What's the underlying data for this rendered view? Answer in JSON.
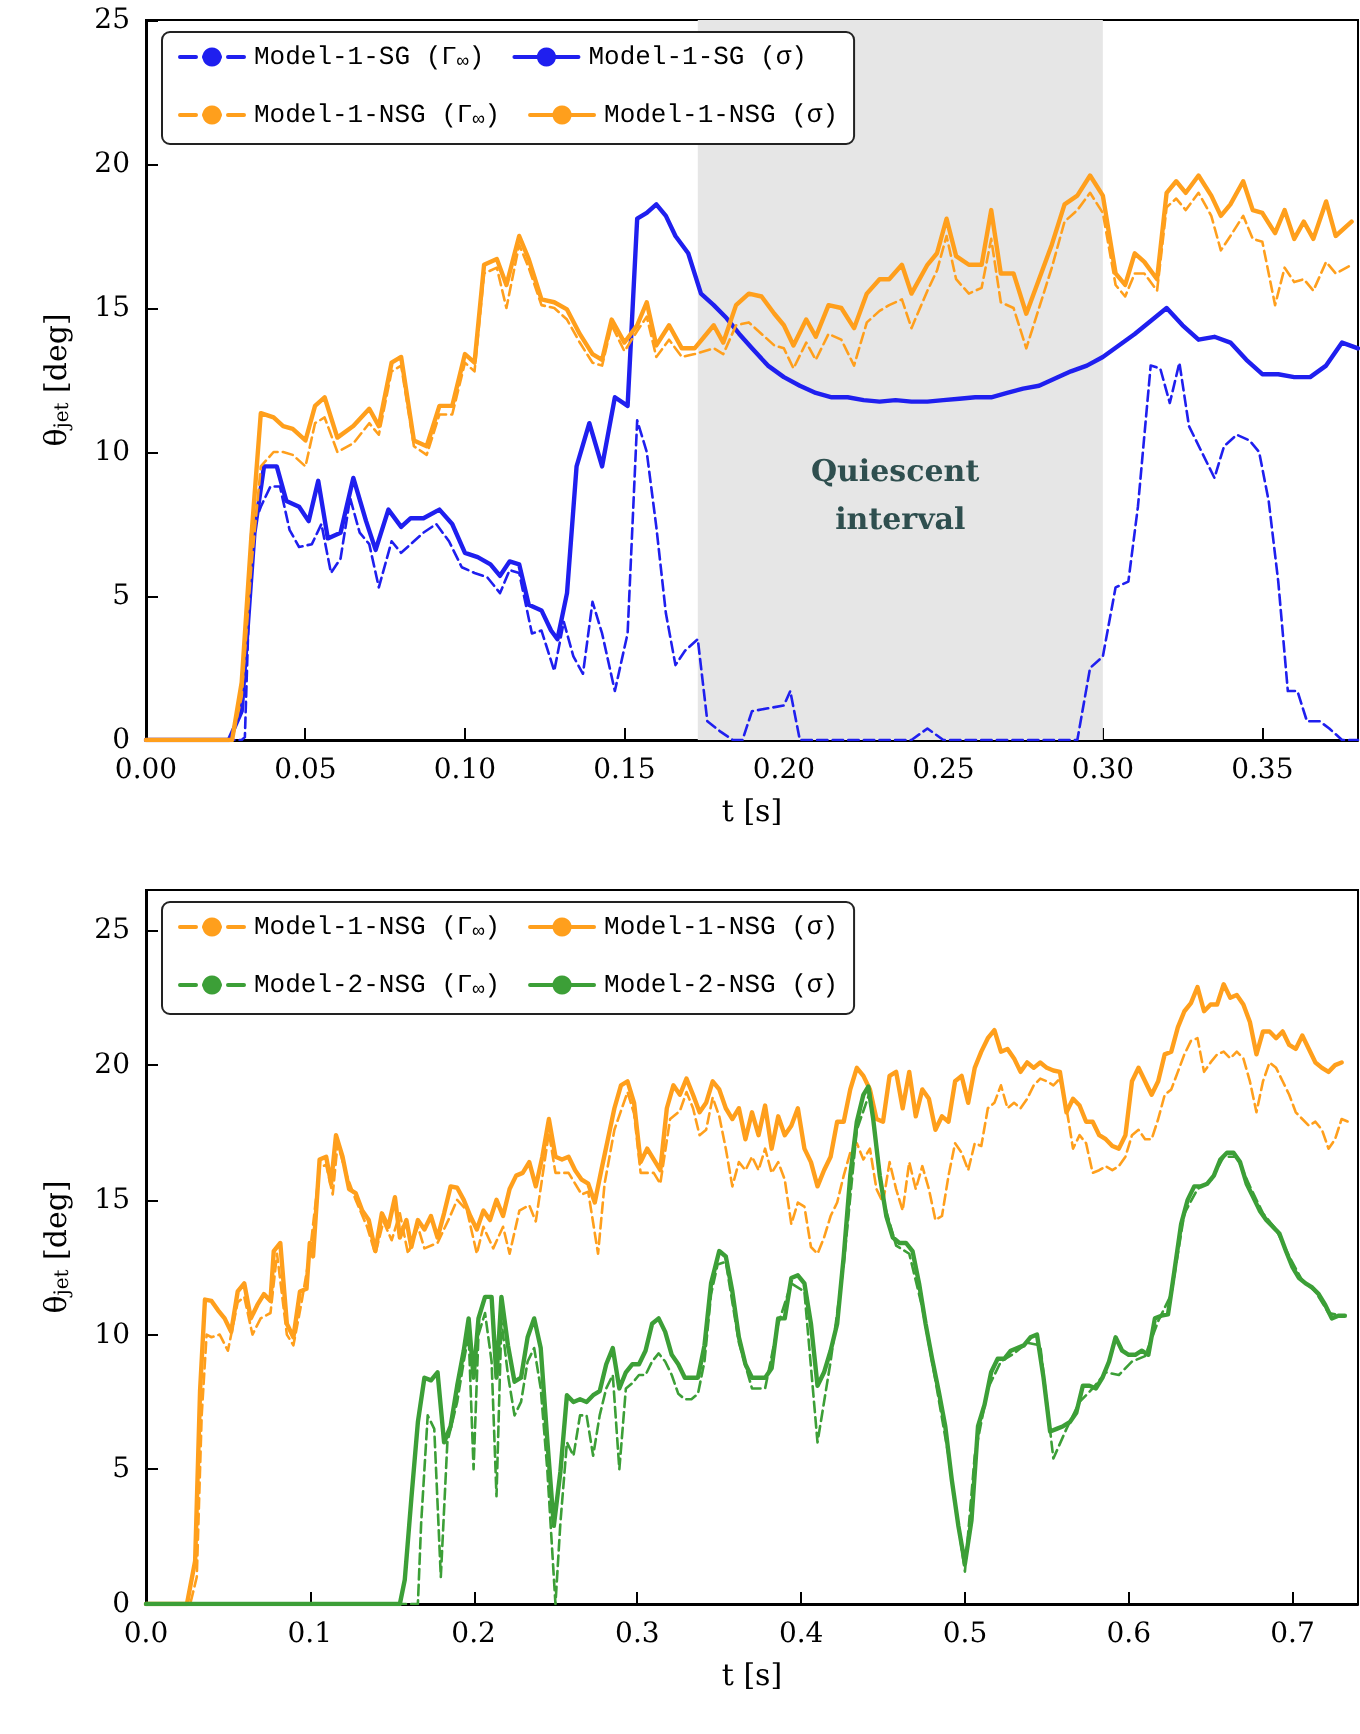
{
  "chart_data": [
    {
      "type": "line",
      "xlabel": "t [s]",
      "ylabel": "θ$_{jet}$ [deg]",
      "xlim": [
        0,
        0.38
      ],
      "ylim": [
        0,
        25
      ],
      "xticks": [
        {
          "value": 0,
          "label": "0.00"
        },
        0.05,
        {
          "value": 0.1,
          "label": "0.10"
        },
        0.15,
        {
          "value": 0.2,
          "label": "0.20"
        },
        0.25,
        {
          "value": 0.3,
          "label": "0.30"
        },
        0.35
      ],
      "yticks": [
        0,
        5,
        10,
        15,
        20,
        25
      ],
      "grid": false,
      "legend": "top left",
      "marker": "none",
      "bands": [
        {
          "axis": "x",
          "from": 0.173,
          "to": 0.3,
          "label": "Quiescent interval",
          "color": "#e6e6e6"
        }
      ],
      "series": [
        {
          "name": "Model-1-SG (Γ$_{∞}$)",
          "color": "#1f1fef",
          "line_style": "dashed",
          "x": [
            0,
            0.03,
            0.031,
            0.033,
            0.036,
            0.039,
            0.042,
            0.045,
            0.048,
            0.052,
            0.055,
            0.058,
            0.061,
            0.064,
            0.067,
            0.07,
            0.073,
            0.077,
            0.08,
            0.084,
            0.087,
            0.091,
            0.095,
            0.099,
            0.103,
            0.107,
            0.111,
            0.114,
            0.117,
            0.121,
            0.124,
            0.128,
            0.131,
            0.134,
            0.137,
            0.14,
            0.143,
            0.147,
            0.151,
            0.154,
            0.157,
            0.16,
            0.163,
            0.166,
            0.169,
            0.173,
            0.176,
            0.18,
            0.184,
            0.187,
            0.19,
            0.195,
            0.2,
            0.202,
            0.205,
            0.24,
            0.245,
            0.25,
            0.292,
            0.296,
            0.3,
            0.304,
            0.308,
            0.311,
            0.315,
            0.318,
            0.321,
            0.324,
            0.327,
            0.331,
            0.335,
            0.338,
            0.342,
            0.346,
            0.349,
            0.352,
            0.355,
            0.358,
            0.361,
            0.364,
            0.368,
            0.371,
            0.375,
            0.38
          ],
          "values": [
            0,
            0,
            0.1,
            7.2,
            8.1,
            8.8,
            8.8,
            7.3,
            6.7,
            6.8,
            7.5,
            5.8,
            6.3,
            8.4,
            7.2,
            6.8,
            5.3,
            6.9,
            6.5,
            6.9,
            7.2,
            7.5,
            6.9,
            6.0,
            5.8,
            5.65,
            5.1,
            5.9,
            5.8,
            3.7,
            3.8,
            2.4,
            4.1,
            2.9,
            2.3,
            4.8,
            3.7,
            1.7,
            3.7,
            11.1,
            10.0,
            7.4,
            4.4,
            2.6,
            3.1,
            3.5,
            0.65,
            0.3,
            0,
            0,
            1.0,
            1.1,
            1.2,
            1.7,
            0,
            0,
            0.4,
            0,
            0,
            2.5,
            2.9,
            5.3,
            5.5,
            8.1,
            13.0,
            12.9,
            11.7,
            13.1,
            10.9,
            10.0,
            9.1,
            10.2,
            10.6,
            10.4,
            10.0,
            8.3,
            5.5,
            1.7,
            1.7,
            0.65,
            0.65,
            0.4,
            0,
            0
          ]
        },
        {
          "name": "Model-1-SG (σ)",
          "color": "#1f1fef",
          "line_style": "solid",
          "x": [
            0,
            0.026,
            0.03,
            0.034,
            0.037,
            0.041,
            0.044,
            0.048,
            0.051,
            0.054,
            0.057,
            0.061,
            0.065,
            0.069,
            0.072,
            0.076,
            0.08,
            0.083,
            0.087,
            0.092,
            0.096,
            0.1,
            0.104,
            0.108,
            0.111,
            0.114,
            0.117,
            0.12,
            0.124,
            0.127,
            0.129,
            0.132,
            0.135,
            0.139,
            0.143,
            0.147,
            0.151,
            0.154,
            0.157,
            0.16,
            0.163,
            0.166,
            0.17,
            0.174,
            0.178,
            0.182,
            0.186,
            0.19,
            0.195,
            0.2,
            0.205,
            0.21,
            0.215,
            0.22,
            0.225,
            0.23,
            0.235,
            0.24,
            0.245,
            0.25,
            0.255,
            0.26,
            0.265,
            0.27,
            0.275,
            0.28,
            0.285,
            0.29,
            0.295,
            0.3,
            0.305,
            0.31,
            0.315,
            0.32,
            0.325,
            0.33,
            0.335,
            0.34,
            0.345,
            0.35,
            0.355,
            0.36,
            0.365,
            0.37,
            0.375,
            0.38
          ],
          "values": [
            0,
            0,
            1.0,
            7.2,
            9.5,
            9.5,
            8.3,
            8.1,
            7.6,
            9.0,
            7.0,
            7.2,
            9.1,
            7.6,
            6.6,
            8.0,
            7.4,
            7.7,
            7.7,
            8.0,
            7.5,
            6.5,
            6.35,
            6.1,
            5.7,
            6.2,
            6.1,
            4.7,
            4.5,
            3.8,
            3.5,
            5.1,
            9.5,
            11.0,
            9.5,
            11.9,
            11.6,
            18.1,
            18.3,
            18.6,
            18.2,
            17.5,
            16.9,
            15.5,
            15.1,
            14.65,
            14.1,
            13.6,
            13.0,
            12.6,
            12.3,
            12.05,
            11.9,
            11.9,
            11.8,
            11.75,
            11.8,
            11.75,
            11.75,
            11.8,
            11.85,
            11.9,
            11.9,
            12.05,
            12.2,
            12.3,
            12.55,
            12.8,
            13.0,
            13.3,
            13.7,
            14.1,
            14.55,
            15.0,
            14.4,
            13.9,
            14.0,
            13.8,
            13.2,
            12.7,
            12.7,
            12.6,
            12.6,
            13.0,
            13.8,
            13.6
          ]
        },
        {
          "name": "Model-1-NSG (Γ$_{∞}$)",
          "color": "#ff9f1c",
          "line_style": "dashed",
          "x": [
            0,
            0.027,
            0.03,
            0.033,
            0.036,
            0.04,
            0.043,
            0.046,
            0.05,
            0.053,
            0.056,
            0.06,
            0.065,
            0.07,
            0.073,
            0.077,
            0.08,
            0.084,
            0.088,
            0.092,
            0.096,
            0.1,
            0.103,
            0.106,
            0.11,
            0.113,
            0.117,
            0.12,
            0.124,
            0.128,
            0.132,
            0.136,
            0.14,
            0.143,
            0.146,
            0.15,
            0.154,
            0.157,
            0.16,
            0.164,
            0.168,
            0.172,
            0.178,
            0.181,
            0.185,
            0.189,
            0.193,
            0.197,
            0.2,
            0.203,
            0.207,
            0.21,
            0.214,
            0.218,
            0.222,
            0.226,
            0.23,
            0.233,
            0.237,
            0.24,
            0.245,
            0.248,
            0.251,
            0.254,
            0.258,
            0.262,
            0.265,
            0.268,
            0.272,
            0.276,
            0.28,
            0.284,
            0.288,
            0.292,
            0.296,
            0.3,
            0.304,
            0.307,
            0.31,
            0.313,
            0.317,
            0.32,
            0.323,
            0.326,
            0.33,
            0.334,
            0.337,
            0.34,
            0.344,
            0.347,
            0.35,
            0.354,
            0.357,
            0.36,
            0.363,
            0.366,
            0.37,
            0.373,
            0.378
          ],
          "values": [
            0,
            0,
            1.5,
            6,
            9.5,
            10.0,
            10.0,
            9.9,
            9.5,
            11.0,
            11.2,
            10.0,
            10.3,
            11.0,
            10.6,
            12.8,
            13.0,
            10.2,
            9.9,
            11.3,
            11.3,
            13.1,
            12.8,
            16.2,
            16.4,
            15.0,
            17.2,
            16.4,
            15.1,
            15.0,
            14.6,
            13.8,
            13.1,
            13.0,
            14.4,
            13.5,
            14.2,
            14.7,
            13.3,
            13.9,
            13.3,
            13.4,
            13.6,
            13.4,
            14.4,
            14.5,
            14.1,
            13.7,
            13.6,
            12.9,
            13.8,
            13.2,
            14.1,
            13.9,
            13.0,
            14.5,
            14.9,
            15.1,
            15.3,
            14.3,
            15.6,
            16.3,
            17.5,
            16.0,
            15.5,
            15.7,
            17.4,
            15.2,
            15.0,
            13.6,
            15.0,
            16.4,
            18.0,
            18.4,
            19.0,
            18.3,
            15.8,
            15.4,
            16.2,
            16.2,
            15.6,
            18.5,
            18.8,
            18.4,
            19.0,
            18.2,
            17.0,
            17.5,
            18.2,
            17.4,
            17.3,
            15.1,
            16.4,
            15.9,
            16.0,
            15.6,
            16.6,
            16.2,
            16.5
          ]
        },
        {
          "name": "Model-1-NSG (σ)",
          "color": "#ff9f1c",
          "line_style": "solid",
          "x": [
            0,
            0.027,
            0.03,
            0.033,
            0.036,
            0.04,
            0.043,
            0.046,
            0.05,
            0.053,
            0.056,
            0.06,
            0.065,
            0.07,
            0.073,
            0.077,
            0.08,
            0.084,
            0.088,
            0.092,
            0.096,
            0.1,
            0.103,
            0.106,
            0.11,
            0.113,
            0.117,
            0.12,
            0.124,
            0.128,
            0.132,
            0.136,
            0.14,
            0.143,
            0.146,
            0.15,
            0.154,
            0.157,
            0.16,
            0.164,
            0.168,
            0.172,
            0.178,
            0.181,
            0.185,
            0.189,
            0.193,
            0.197,
            0.2,
            0.203,
            0.207,
            0.21,
            0.214,
            0.218,
            0.222,
            0.226,
            0.23,
            0.233,
            0.237,
            0.24,
            0.245,
            0.248,
            0.251,
            0.254,
            0.258,
            0.262,
            0.265,
            0.268,
            0.272,
            0.276,
            0.28,
            0.284,
            0.288,
            0.292,
            0.296,
            0.3,
            0.304,
            0.307,
            0.31,
            0.313,
            0.317,
            0.32,
            0.323,
            0.326,
            0.33,
            0.334,
            0.337,
            0.34,
            0.344,
            0.347,
            0.35,
            0.354,
            0.357,
            0.36,
            0.363,
            0.366,
            0.37,
            0.373,
            0.378
          ],
          "values": [
            0,
            0,
            2,
            7,
            11.35,
            11.2,
            10.9,
            10.8,
            10.4,
            11.6,
            11.9,
            10.5,
            10.9,
            11.5,
            10.9,
            13.1,
            13.3,
            10.4,
            10.2,
            11.6,
            11.6,
            13.4,
            13.1,
            16.5,
            16.7,
            15.8,
            17.5,
            16.7,
            15.3,
            15.2,
            14.95,
            14.1,
            13.4,
            13.2,
            14.6,
            13.8,
            14.4,
            15.2,
            13.7,
            14.4,
            13.6,
            13.6,
            14.4,
            13.8,
            15.1,
            15.5,
            15.4,
            14.8,
            14.4,
            13.7,
            14.6,
            14.0,
            15.1,
            15.0,
            14.3,
            15.5,
            16.0,
            16.0,
            16.5,
            15.5,
            16.5,
            16.9,
            18.1,
            16.8,
            16.5,
            16.5,
            18.4,
            16.2,
            16.2,
            14.8,
            16.0,
            17.2,
            18.6,
            18.9,
            19.6,
            18.9,
            16.2,
            15.8,
            16.9,
            16.6,
            16.0,
            19.0,
            19.4,
            19.0,
            19.6,
            18.9,
            18.2,
            18.6,
            19.4,
            18.4,
            18.3,
            17.6,
            18.4,
            17.4,
            18.0,
            17.4,
            18.7,
            17.5,
            18.0
          ]
        }
      ]
    },
    {
      "type": "line",
      "xlabel": "t [s]",
      "ylabel": "θ$_{jet}$ [deg]",
      "xlim": [
        0,
        0.74
      ],
      "ylim": [
        0,
        26.5
      ],
      "xticks": [
        {
          "value": 0,
          "label": "0.0"
        },
        0.1,
        0.2,
        0.3,
        0.4,
        0.5,
        0.6,
        0.7
      ],
      "yticks": [
        0,
        5,
        10,
        15,
        20,
        25
      ],
      "grid": false,
      "legend": "top left",
      "marker": "none",
      "series": [
        {
          "name": "Model-1-NSG (Γ$_{∞}$)",
          "color": "#ff9f1c",
          "line_style": "dashed",
          "x": [
            0,
            0.027,
            0.031,
            0.034,
            0.037,
            0.04,
            0.045,
            0.05,
            0.056,
            0.06,
            0.065,
            0.07,
            0.076,
            0.08,
            0.086,
            0.09,
            0.095,
            0.1,
            0.106,
            0.11,
            0.114,
            0.117,
            0.122,
            0.128,
            0.135,
            0.14,
            0.145,
            0.15,
            0.155,
            0.16,
            0.166,
            0.17,
            0.178,
            0.185,
            0.19,
            0.196,
            0.202,
            0.206,
            0.212,
            0.218,
            0.222,
            0.228,
            0.234,
            0.238,
            0.246,
            0.25,
            0.258,
            0.266,
            0.27,
            0.276,
            0.28,
            0.286,
            0.294,
            0.298,
            0.302,
            0.31,
            0.314,
            0.32,
            0.326,
            0.33,
            0.334,
            0.338,
            0.342,
            0.346,
            0.35,
            0.354,
            0.358,
            0.362,
            0.366,
            0.37,
            0.374,
            0.378,
            0.382,
            0.386,
            0.39,
            0.394,
            0.398,
            0.402,
            0.406,
            0.41,
            0.414,
            0.418,
            0.422,
            0.426,
            0.43,
            0.434,
            0.438,
            0.442,
            0.446,
            0.45,
            0.454,
            0.458,
            0.462,
            0.466,
            0.47,
            0.474,
            0.478,
            0.482,
            0.486,
            0.49,
            0.494,
            0.498,
            0.502,
            0.506,
            0.51,
            0.514,
            0.518,
            0.522,
            0.526,
            0.53,
            0.534,
            0.538,
            0.542,
            0.546,
            0.55,
            0.554,
            0.558,
            0.562,
            0.566,
            0.57,
            0.574,
            0.578,
            0.582,
            0.586,
            0.59,
            0.594,
            0.598,
            0.602,
            0.606,
            0.61,
            0.614,
            0.618,
            0.622,
            0.626,
            0.63,
            0.634,
            0.638,
            0.642,
            0.646,
            0.65,
            0.654,
            0.658,
            0.662,
            0.666,
            0.67,
            0.674,
            0.678,
            0.682,
            0.686,
            0.69,
            0.694,
            0.698,
            0.702,
            0.706,
            0.71,
            0.714,
            0.718,
            0.722,
            0.726,
            0.73,
            0.734
          ],
          "values": [
            0,
            0,
            1.0,
            7,
            10.0,
            9.9,
            10.0,
            9.4,
            11.2,
            11.4,
            10.0,
            10.6,
            10.8,
            13.0,
            10.0,
            9.6,
            11.2,
            13.0,
            16.2,
            16.3,
            15.2,
            17.1,
            16.0,
            15.0,
            14.0,
            13.0,
            14.2,
            13.5,
            14.5,
            13.0,
            14.0,
            13.2,
            13.4,
            14.3,
            15.0,
            14.6,
            13.0,
            14.0,
            13.2,
            14.0,
            13.0,
            14.6,
            14.8,
            14.2,
            17.5,
            16.0,
            16.0,
            15.2,
            15.3,
            13.0,
            15.6,
            17.6,
            19.0,
            18.2,
            16.0,
            16.0,
            15.6,
            18.0,
            18.3,
            19.0,
            18.4,
            17.4,
            17.6,
            18.8,
            18.1,
            16.9,
            15.5,
            16.4,
            16.1,
            16.6,
            16.1,
            16.9,
            16.0,
            16.4,
            15.75,
            14.1,
            14.9,
            14.75,
            13.25,
            13.0,
            13.6,
            14.4,
            14.9,
            15.9,
            16.75,
            17.1,
            16.5,
            16.9,
            15.4,
            14.9,
            16.4,
            15.4,
            14.6,
            16.4,
            15.4,
            16.25,
            15.4,
            14.25,
            14.4,
            15.9,
            17.1,
            16.75,
            16.1,
            17.1,
            17.0,
            18.4,
            18.6,
            19.25,
            18.4,
            18.6,
            18.4,
            18.75,
            19.25,
            19.5,
            19.4,
            19.25,
            19.5,
            18.4,
            16.9,
            17.4,
            17.1,
            16.0,
            16.1,
            16.25,
            16.1,
            16.25,
            16.6,
            17.4,
            17.6,
            17.25,
            17.25,
            18.0,
            18.9,
            19.1,
            19.75,
            20.4,
            20.9,
            21.0,
            19.75,
            20.1,
            20.4,
            20.5,
            20.25,
            20.5,
            20.25,
            19.4,
            18.25,
            19.4,
            20.1,
            19.9,
            19.4,
            18.9,
            18.25,
            18.0,
            17.75,
            17.9,
            17.6,
            16.9,
            17.25,
            18.0,
            17.9
          ]
        },
        {
          "name": "Model-1-NSG (σ)",
          "color": "#ff9f1c",
          "line_style": "solid",
          "x": [
            0,
            0.025,
            0.03,
            0.033,
            0.036,
            0.04,
            0.044,
            0.048,
            0.052,
            0.056,
            0.06,
            0.064,
            0.068,
            0.072,
            0.076,
            0.078,
            0.082,
            0.086,
            0.09,
            0.094,
            0.098,
            0.1,
            0.102,
            0.106,
            0.11,
            0.113,
            0.116,
            0.12,
            0.124,
            0.128,
            0.132,
            0.136,
            0.14,
            0.144,
            0.148,
            0.152,
            0.155,
            0.159,
            0.162,
            0.166,
            0.17,
            0.174,
            0.178,
            0.182,
            0.186,
            0.19,
            0.194,
            0.198,
            0.202,
            0.206,
            0.21,
            0.214,
            0.218,
            0.222,
            0.226,
            0.23,
            0.234,
            0.238,
            0.242,
            0.246,
            0.25,
            0.254,
            0.258,
            0.262,
            0.266,
            0.27,
            0.274,
            0.278,
            0.282,
            0.286,
            0.29,
            0.294,
            0.298,
            0.302,
            0.306,
            0.31,
            0.314,
            0.318,
            0.322,
            0.326,
            0.33,
            0.334,
            0.338,
            0.342,
            0.346,
            0.35,
            0.354,
            0.358,
            0.362,
            0.366,
            0.37,
            0.374,
            0.378,
            0.382,
            0.386,
            0.39,
            0.394,
            0.398,
            0.402,
            0.406,
            0.41,
            0.414,
            0.418,
            0.422,
            0.426,
            0.43,
            0.434,
            0.438,
            0.442,
            0.446,
            0.45,
            0.454,
            0.458,
            0.462,
            0.466,
            0.47,
            0.474,
            0.478,
            0.482,
            0.486,
            0.49,
            0.494,
            0.498,
            0.502,
            0.506,
            0.51,
            0.514,
            0.518,
            0.522,
            0.526,
            0.53,
            0.534,
            0.538,
            0.542,
            0.546,
            0.55,
            0.554,
            0.558,
            0.562,
            0.566,
            0.57,
            0.574,
            0.578,
            0.582,
            0.586,
            0.59,
            0.594,
            0.598,
            0.602,
            0.606,
            0.61,
            0.614,
            0.618,
            0.622,
            0.626,
            0.63,
            0.634,
            0.638,
            0.642,
            0.646,
            0.65,
            0.654,
            0.658,
            0.662,
            0.666,
            0.67,
            0.674,
            0.678,
            0.682,
            0.686,
            0.69,
            0.694,
            0.698,
            0.702,
            0.706,
            0.71,
            0.714,
            0.718,
            0.722,
            0.726,
            0.73
          ],
          "values": [
            0,
            0,
            1.6,
            7.9,
            11.3,
            11.25,
            10.9,
            10.6,
            10.1,
            11.6,
            11.9,
            10.6,
            11.1,
            11.5,
            11.25,
            13.1,
            13.4,
            10.4,
            9.9,
            11.6,
            11.7,
            13.4,
            12.9,
            16.5,
            16.6,
            15.6,
            17.4,
            16.6,
            15.4,
            15.25,
            14.6,
            14.25,
            13.1,
            14.5,
            14.0,
            15.1,
            13.6,
            14.25,
            13.25,
            14.25,
            13.9,
            14.4,
            13.6,
            14.5,
            15.5,
            15.45,
            15.0,
            14.4,
            13.9,
            14.6,
            14.25,
            15.0,
            14.4,
            15.4,
            15.9,
            16.0,
            16.4,
            15.5,
            16.6,
            18.0,
            16.6,
            16.5,
            16.6,
            16.1,
            15.75,
            15.6,
            14.9,
            16.1,
            17.25,
            18.4,
            19.25,
            19.4,
            18.6,
            16.4,
            16.9,
            16.5,
            16.1,
            18.4,
            19.25,
            18.9,
            19.5,
            18.9,
            18.25,
            18.6,
            19.4,
            19.1,
            18.4,
            18.0,
            18.4,
            17.25,
            18.25,
            17.4,
            18.5,
            16.9,
            18.1,
            17.4,
            17.75,
            18.4,
            16.9,
            16.4,
            15.5,
            16.1,
            16.6,
            17.9,
            17.9,
            19.1,
            19.9,
            19.6,
            19.1,
            18.0,
            17.9,
            19.6,
            19.75,
            18.4,
            19.75,
            18.1,
            19.1,
            18.75,
            17.6,
            18.1,
            17.9,
            19.4,
            19.6,
            18.6,
            19.9,
            20.5,
            21.0,
            21.3,
            20.5,
            20.6,
            20.25,
            19.75,
            20.1,
            19.9,
            20.1,
            19.9,
            19.8,
            19.75,
            18.25,
            18.75,
            18.5,
            17.9,
            17.9,
            17.4,
            17.25,
            17.0,
            16.9,
            17.4,
            19.4,
            19.9,
            19.4,
            18.9,
            19.4,
            20.4,
            20.5,
            21.4,
            22.0,
            22.3,
            22.9,
            22.0,
            22.25,
            22.25,
            23.0,
            22.5,
            22.6,
            22.25,
            21.6,
            20.4,
            21.25,
            21.25,
            21.0,
            21.25,
            20.75,
            20.6,
            21.1,
            20.6,
            20.1,
            19.9,
            19.75,
            20.0,
            20.1
          ]
        },
        {
          "name": "Model-2-NSG (Γ$_{∞}$)",
          "color": "#3c9f37",
          "line_style": "dashed",
          "x": [
            0,
            0.166,
            0.168,
            0.172,
            0.176,
            0.18,
            0.184,
            0.19,
            0.194,
            0.197,
            0.2,
            0.203,
            0.207,
            0.211,
            0.214,
            0.217,
            0.221,
            0.225,
            0.229,
            0.233,
            0.237,
            0.241,
            0.245,
            0.25,
            0.253,
            0.257,
            0.261,
            0.265,
            0.269,
            0.273,
            0.277,
            0.281,
            0.285,
            0.289,
            0.293,
            0.297,
            0.301,
            0.305,
            0.309,
            0.313,
            0.317,
            0.321,
            0.325,
            0.329,
            0.333,
            0.337,
            0.341,
            0.345,
            0.349,
            0.354,
            0.362,
            0.37,
            0.378,
            0.386,
            0.394,
            0.402,
            0.41,
            0.418,
            0.426,
            0.434,
            0.442,
            0.45,
            0.458,
            0.466,
            0.474,
            0.482,
            0.49,
            0.5,
            0.506,
            0.514,
            0.522,
            0.53,
            0.538,
            0.546,
            0.554,
            0.562,
            0.57,
            0.578,
            0.586,
            0.594,
            0.602,
            0.61,
            0.618,
            0.626,
            0.634,
            0.642,
            0.65,
            0.658,
            0.666,
            0.674,
            0.682,
            0.69,
            0.698,
            0.706,
            0.714,
            0.722,
            0.73
          ],
          "values": [
            0,
            0,
            3.0,
            7.0,
            6.5,
            1.0,
            6.0,
            7.5,
            9.0,
            10.0,
            5.0,
            10.0,
            10.8,
            9.0,
            4.0,
            10.5,
            8.5,
            7.0,
            7.5,
            9.0,
            9.5,
            8.0,
            5.0,
            0,
            3.0,
            6.0,
            5.5,
            7.0,
            7.0,
            5.5,
            7.0,
            8.0,
            8.5,
            5.0,
            8.0,
            8.2,
            8.5,
            8.5,
            9.0,
            9.3,
            9.0,
            8.5,
            7.8,
            7.6,
            7.6,
            7.8,
            9.0,
            11.5,
            12.6,
            12.7,
            9.7,
            8.0,
            8.0,
            10.4,
            11.9,
            11.6,
            6.0,
            9.0,
            12.6,
            17.6,
            19.0,
            15.0,
            13.3,
            13.0,
            11.0,
            8.3,
            5.5,
            1.2,
            5.5,
            8.0,
            9.0,
            9.3,
            9.7,
            9.6,
            5.4,
            6.5,
            7.5,
            8.0,
            8.6,
            8.5,
            9.0,
            9.2,
            10.5,
            11.5,
            14.5,
            15.4,
            15.7,
            16.6,
            16.6,
            15.5,
            14.5,
            13.9,
            12.9,
            12.0,
            11.6,
            10.8,
            10.7
          ]
        },
        {
          "name": "Model-2-NSG (σ)",
          "color": "#3c9f37",
          "line_style": "solid",
          "x": [
            0,
            0.155,
            0.158,
            0.162,
            0.166,
            0.17,
            0.174,
            0.178,
            0.182,
            0.186,
            0.19,
            0.194,
            0.197,
            0.2,
            0.203,
            0.207,
            0.211,
            0.214,
            0.217,
            0.221,
            0.225,
            0.229,
            0.233,
            0.237,
            0.241,
            0.245,
            0.249,
            0.253,
            0.257,
            0.261,
            0.265,
            0.269,
            0.273,
            0.277,
            0.281,
            0.285,
            0.289,
            0.293,
            0.297,
            0.301,
            0.305,
            0.309,
            0.313,
            0.317,
            0.321,
            0.325,
            0.329,
            0.333,
            0.337,
            0.341,
            0.345,
            0.35,
            0.354,
            0.358,
            0.362,
            0.366,
            0.37,
            0.374,
            0.378,
            0.382,
            0.386,
            0.39,
            0.394,
            0.398,
            0.402,
            0.406,
            0.41,
            0.414,
            0.418,
            0.422,
            0.426,
            0.43,
            0.434,
            0.438,
            0.441,
            0.444,
            0.448,
            0.452,
            0.456,
            0.46,
            0.464,
            0.468,
            0.472,
            0.476,
            0.48,
            0.484,
            0.488,
            0.492,
            0.496,
            0.5,
            0.504,
            0.508,
            0.512,
            0.516,
            0.52,
            0.524,
            0.528,
            0.532,
            0.536,
            0.54,
            0.544,
            0.548,
            0.552,
            0.556,
            0.56,
            0.564,
            0.568,
            0.572,
            0.576,
            0.58,
            0.584,
            0.588,
            0.592,
            0.596,
            0.6,
            0.604,
            0.608,
            0.612,
            0.616,
            0.62,
            0.624,
            0.628,
            0.632,
            0.636,
            0.64,
            0.644,
            0.648,
            0.652,
            0.656,
            0.66,
            0.664,
            0.668,
            0.672,
            0.676,
            0.68,
            0.684,
            0.688,
            0.692,
            0.696,
            0.7,
            0.704,
            0.708,
            0.712,
            0.716,
            0.72,
            0.724,
            0.728,
            0.732
          ],
          "values": [
            0,
            0,
            0.9,
            3.9,
            6.75,
            8.4,
            8.3,
            8.6,
            6.0,
            6.6,
            8.1,
            9.4,
            10.6,
            8.4,
            10.6,
            11.4,
            11.4,
            8.4,
            11.4,
            9.6,
            8.25,
            8.4,
            9.9,
            10.6,
            9.5,
            6.1,
            2.9,
            4.9,
            7.75,
            7.5,
            7.6,
            7.5,
            7.75,
            7.9,
            8.9,
            9.5,
            8.0,
            8.6,
            8.9,
            8.9,
            9.4,
            10.4,
            10.6,
            10.1,
            9.25,
            8.9,
            8.4,
            8.4,
            8.4,
            9.6,
            11.9,
            13.1,
            12.9,
            11.6,
            9.9,
            8.9,
            8.4,
            8.4,
            8.4,
            8.75,
            10.6,
            10.6,
            12.1,
            12.2,
            11.9,
            10.4,
            8.1,
            8.6,
            9.4,
            10.4,
            12.9,
            15.9,
            17.9,
            18.9,
            19.2,
            18.0,
            15.9,
            14.4,
            13.6,
            13.4,
            13.4,
            13.1,
            11.9,
            10.4,
            9.1,
            7.9,
            6.6,
            4.6,
            2.9,
            1.5,
            3.1,
            6.6,
            7.4,
            8.6,
            9.1,
            9.1,
            9.4,
            9.5,
            9.6,
            9.9,
            10.0,
            8.4,
            6.4,
            6.5,
            6.6,
            6.75,
            7.1,
            8.1,
            8.1,
            8.0,
            8.4,
            9.0,
            9.9,
            9.4,
            9.25,
            9.25,
            9.4,
            9.25,
            10.6,
            10.7,
            10.75,
            12.4,
            14.1,
            15.0,
            15.5,
            15.5,
            15.6,
            15.9,
            16.5,
            16.75,
            16.75,
            16.4,
            15.6,
            15.1,
            14.6,
            14.25,
            14.0,
            13.75,
            13.1,
            12.5,
            12.1,
            11.9,
            11.75,
            11.5,
            11.1,
            10.6,
            10.7,
            10.7
          ]
        }
      ]
    }
  ]
}
